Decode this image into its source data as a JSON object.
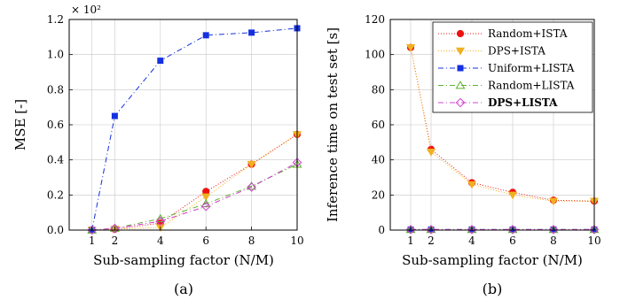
{
  "chart_data": [
    {
      "type": "line",
      "panel_label": "(a)",
      "xlabel": "Sub-sampling factor (N/M)",
      "ylabel": "MSE [-]",
      "y_multiplier": "× 10²",
      "xlim": [
        0,
        10
      ],
      "ylim": [
        0,
        1.2
      ],
      "xticks": [
        1,
        2,
        4,
        6,
        8,
        10
      ],
      "yticks": [
        "0.0",
        "0.2",
        "0.4",
        "0.6",
        "0.8",
        "1.0",
        "1.2"
      ],
      "grid": true,
      "x": [
        1,
        2,
        4,
        6,
        8,
        10
      ],
      "series": [
        {
          "name": "Random+ISTA",
          "color": "#ee1111",
          "marker": "circle",
          "dash": "1,2",
          "values": [
            0.0,
            0.005,
            0.04,
            0.22,
            0.375,
            0.545
          ]
        },
        {
          "name": "DPS+ISTA",
          "color": "#f0b020",
          "marker": "triangle-down",
          "dash": "1,2",
          "values": [
            0.0,
            0.005,
            0.015,
            0.19,
            0.375,
            0.545
          ]
        },
        {
          "name": "Uniform+LISTA",
          "color": "#1530e0",
          "marker": "square",
          "dash": "6,3,1,3",
          "values": [
            0.0,
            0.65,
            0.965,
            1.11,
            1.125,
            1.15
          ]
        },
        {
          "name": "Random+LISTA",
          "color": "#60b030",
          "marker": "triangle-up",
          "dash": "6,3,1,3",
          "values": [
            0.0,
            0.01,
            0.065,
            0.15,
            0.25,
            0.375
          ]
        },
        {
          "name": "DPS+LISTA",
          "color": "#d040d0",
          "marker": "diamond",
          "dash": "6,3,1,3",
          "bold": true,
          "values": [
            0.0,
            0.01,
            0.05,
            0.135,
            0.245,
            0.385
          ]
        }
      ]
    },
    {
      "type": "line",
      "panel_label": "(b)",
      "xlabel": "Sub-sampling factor (N/M)",
      "ylabel": "Inference time on test set [s]",
      "xlim": [
        0,
        10
      ],
      "ylim": [
        0,
        120
      ],
      "xticks": [
        1,
        2,
        4,
        6,
        8,
        10
      ],
      "yticks": [
        "0",
        "20",
        "40",
        "60",
        "80",
        "100",
        "120"
      ],
      "grid": true,
      "legend_position": "top-right",
      "x": [
        1,
        2,
        4,
        6,
        8,
        10
      ],
      "series": [
        {
          "name": "Random+ISTA",
          "color": "#ee1111",
          "marker": "circle",
          "dash": "1,2",
          "values": [
            104,
            46,
            27,
            21.5,
            17,
            16.5
          ]
        },
        {
          "name": "DPS+ISTA",
          "color": "#f0b020",
          "marker": "triangle-down",
          "dash": "1,2",
          "values": [
            104,
            44.5,
            26,
            20,
            16.5,
            16.5
          ]
        },
        {
          "name": "Uniform+LISTA",
          "color": "#1530e0",
          "marker": "square",
          "dash": "6,3,1,3",
          "values": [
            0.3,
            0.3,
            0.3,
            0.3,
            0.3,
            0.3
          ]
        },
        {
          "name": "Random+LISTA",
          "color": "#60b030",
          "marker": "triangle-up",
          "dash": "6,3,1,3",
          "values": [
            0.3,
            0.3,
            0.3,
            0.3,
            0.3,
            0.3
          ]
        },
        {
          "name": "DPS+LISTA",
          "color": "#d040d0",
          "marker": "diamond",
          "dash": "6,3,1,3",
          "bold": true,
          "values": [
            0.3,
            0.3,
            0.3,
            0.3,
            0.3,
            0.3
          ]
        }
      ]
    }
  ]
}
